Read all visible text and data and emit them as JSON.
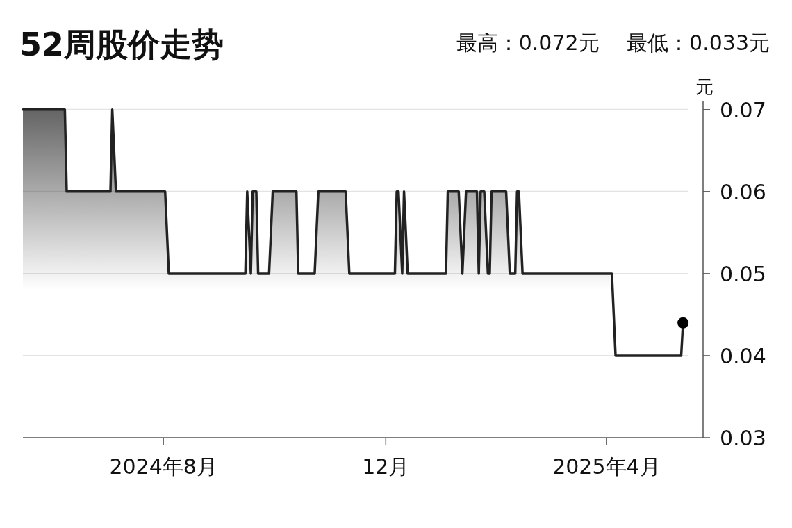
{
  "chart_data": {
    "type": "area",
    "title": "52周股价走势",
    "subtitle": "最高：0.072元　 最低：0.033元",
    "ylabel": "元",
    "x": [
      "2024-05-16",
      "2024-06-08",
      "2024-06-09",
      "2024-07-03",
      "2024-07-04",
      "2024-07-06",
      "2024-08-02",
      "2024-08-04",
      "2024-09-15",
      "2024-09-16",
      "2024-09-18",
      "2024-09-19",
      "2024-09-21",
      "2024-09-22",
      "2024-09-28",
      "2024-09-30",
      "2024-10-13",
      "2024-10-14",
      "2024-10-23",
      "2024-10-25",
      "2024-11-09",
      "2024-11-11",
      "2024-12-06",
      "2024-12-07",
      "2024-12-08",
      "2024-12-10",
      "2024-12-11",
      "2024-12-13",
      "2025-01-03",
      "2025-01-04",
      "2025-01-10",
      "2025-01-12",
      "2025-01-14",
      "2025-01-20",
      "2025-01-21",
      "2025-01-22",
      "2025-01-24",
      "2025-01-26",
      "2025-01-27",
      "2025-01-28",
      "2025-02-05",
      "2025-02-07",
      "2025-02-10",
      "2025-02-11",
      "2025-02-12",
      "2025-02-14",
      "2025-04-04",
      "2025-04-06",
      "2025-05-12",
      "2025-05-13"
    ],
    "series": [
      {
        "color": "#222222",
        "values": [
          0.07,
          0.07,
          0.06,
          0.06,
          0.07,
          0.06,
          0.06,
          0.05,
          0.05,
          0.06,
          0.05,
          0.06,
          0.06,
          0.05,
          0.05,
          0.06,
          0.06,
          0.05,
          0.05,
          0.06,
          0.06,
          0.05,
          0.05,
          0.06,
          0.06,
          0.05,
          0.06,
          0.05,
          0.05,
          0.06,
          0.06,
          0.05,
          0.06,
          0.06,
          0.05,
          0.06,
          0.06,
          0.05,
          0.05,
          0.06,
          0.06,
          0.05,
          0.05,
          0.06,
          0.06,
          0.05,
          0.05,
          0.04,
          0.04,
          0.044
        ]
      },
      {
        "type": "scatter",
        "color": "#000000",
        "marker": "circle",
        "x": [
          "2025-05-13"
        ],
        "values": [
          0.044
        ]
      }
    ],
    "xlim": [
      "2024-05-16",
      "2025-05-24"
    ],
    "xticks": [
      {
        "value": "2024-08-01",
        "label": "2024年8月"
      },
      {
        "value": "2024-12-01",
        "label": "12月"
      },
      {
        "value": "2025-04-01",
        "label": "2025年4月"
      }
    ],
    "ylim": [
      0.03,
      0.071
    ],
    "yticks": [
      {
        "value": 0.03,
        "label": "0.03"
      },
      {
        "value": 0.04,
        "label": "0.04"
      },
      {
        "value": 0.05,
        "label": "0.05"
      },
      {
        "value": 0.06,
        "label": "0.06"
      },
      {
        "value": 0.07,
        "label": "0.07"
      }
    ],
    "grid": "y"
  }
}
